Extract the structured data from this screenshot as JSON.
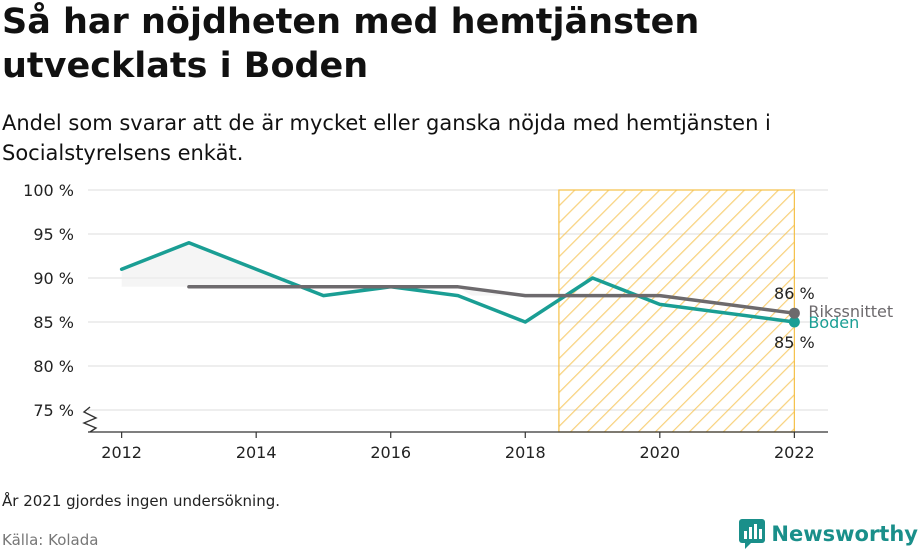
{
  "title": "Så har nöjdheten med hemtjänsten utvecklats i Boden",
  "subtitle": "Andel som svarar att de är mycket eller ganska nöjda med hemtjänsten i Socialstyrelsens enkät.",
  "note": "År 2021 gjordes ingen undersökning.",
  "source": "Källa: Kolada",
  "brand": {
    "name": "Newsworthy",
    "icon": "newsworthy-logo-icon"
  },
  "colors": {
    "boden": "#1a9e94",
    "riket": "#6d6a6d",
    "highlight": "#f5c048",
    "grid": "#dddddd"
  },
  "chart_data": {
    "type": "line",
    "x_ticks": [
      2012,
      2014,
      2016,
      2018,
      2020,
      2022
    ],
    "y_ticks": [
      75,
      80,
      85,
      90,
      95,
      100
    ],
    "y_tick_labels": [
      "75 %",
      "80 %",
      "85 %",
      "90 %",
      "95 %",
      "100 %"
    ],
    "ylim": [
      72.5,
      100
    ],
    "xlim": [
      2011.5,
      2022.5
    ],
    "axis_break": true,
    "grid": true,
    "highlight_range": [
      2018.5,
      2022
    ],
    "series": [
      {
        "name": "Boden",
        "color": "#1a9e94",
        "x": [
          2012,
          2013,
          2014,
          2015,
          2016,
          2017,
          2018,
          2019,
          2020,
          2022
        ],
        "values": [
          91,
          94,
          91,
          88,
          89,
          88,
          85,
          90,
          87,
          85
        ],
        "end_label": "85 %"
      },
      {
        "name": "Rikssnittet",
        "color": "#6d6a6d",
        "x": [
          2013,
          2014,
          2015,
          2016,
          2017,
          2018,
          2019,
          2020,
          2022
        ],
        "values": [
          89,
          89,
          89,
          89,
          89,
          88,
          88,
          88,
          86
        ],
        "end_label": "86 %"
      }
    ]
  }
}
